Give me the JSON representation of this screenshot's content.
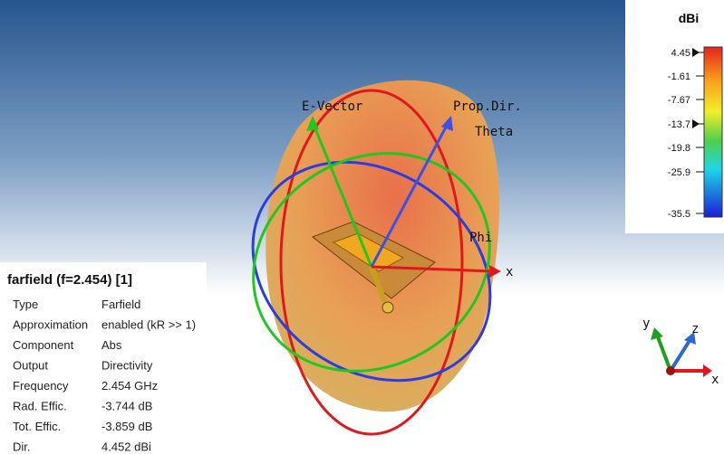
{
  "colorbar": {
    "title": "dBi",
    "ticks": [
      "4.45",
      "-1.61",
      "-7.67",
      "-13.7",
      "-19.8",
      "-25.9",
      "-35.5"
    ]
  },
  "view_labels": {
    "e_vector": "E-Vector",
    "prop_dir": "Prop.Dir.",
    "theta": "Theta",
    "phi": "Phi",
    "x": "x"
  },
  "triad": {
    "x": "x",
    "y": "y",
    "z": "z"
  },
  "info": {
    "title": "farfield (f=2.454) [1]",
    "rows": [
      [
        "Type",
        "Farfield"
      ],
      [
        "Approximation",
        "enabled (kR >> 1)"
      ],
      [
        "Component",
        "Abs"
      ],
      [
        "Output",
        "Directivity"
      ],
      [
        "Frequency",
        "2.454 GHz"
      ],
      [
        "Rad. Effic.",
        "-3.744 dB"
      ],
      [
        "Tot. Effic.",
        "-3.859 dB"
      ],
      [
        "Dir.",
        "4.452 dBi"
      ]
    ]
  }
}
